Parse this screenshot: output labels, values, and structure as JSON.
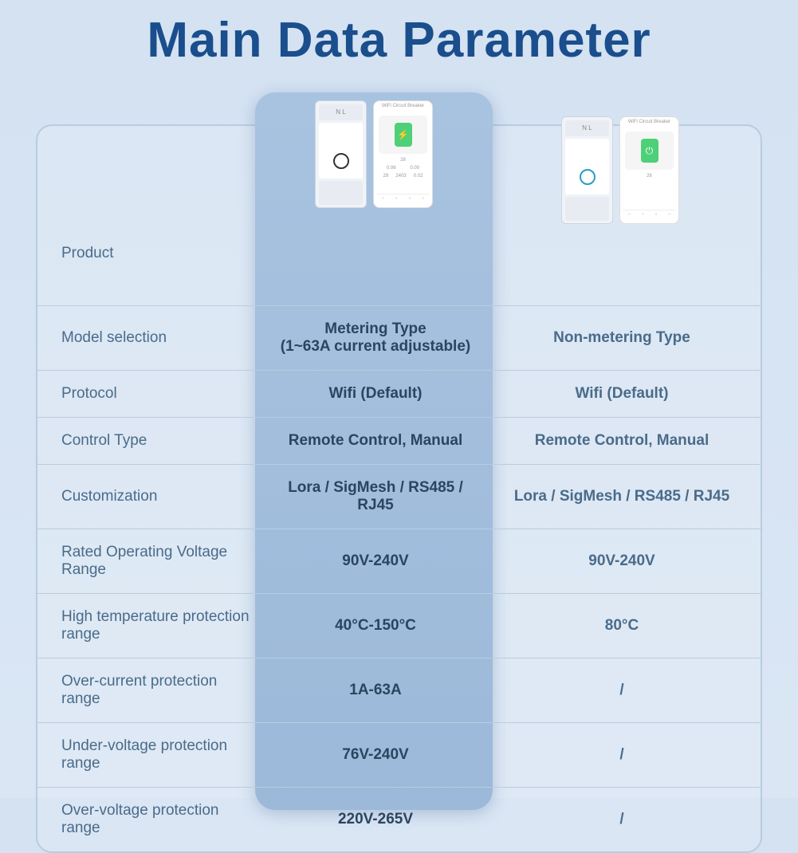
{
  "title": "Main Data Parameter",
  "colors": {
    "title_color": "#1a4e8c",
    "bg_gradient_from": "#d4e2f2",
    "bg_gradient_to": "#dae6f4",
    "highlight_bg": "#a8c3e0",
    "border_color": "#b8cce0",
    "label_color": "#4a6b8a",
    "value_color": "#2a4560"
  },
  "rows": [
    {
      "label": "Product",
      "v1": "",
      "v2": ""
    },
    {
      "label": "Model selection",
      "v1": "Metering Type\n(1~63A current adjustable)",
      "v2": "Non-metering Type"
    },
    {
      "label": "Protocol",
      "v1": "Wifi (Default)",
      "v2": "Wifi (Default)"
    },
    {
      "label": "Control Type",
      "v1": "Remote Control, Manual",
      "v2": "Remote Control, Manual"
    },
    {
      "label": "Customization",
      "v1": "Lora / SigMesh / RS485 / RJ45",
      "v2": "Lora / SigMesh / RS485 / RJ45"
    },
    {
      "label": "Rated Operating Voltage Range",
      "v1": "90V-240V",
      "v2": "90V-240V"
    },
    {
      "label": "High temperature protection range",
      "v1": "40°C-150°C",
      "v2": "80°C"
    },
    {
      "label": "Over-current protection range",
      "v1": "1A-63A",
      "v2": "/"
    },
    {
      "label": "Under-voltage protection range",
      "v1": "76V-240V",
      "v2": "/"
    },
    {
      "label": "Over-voltage protection range",
      "v1": "220V-265V",
      "v2": "/"
    }
  ],
  "phone_label": "WiFi Circuit Breaker",
  "device_terminals": "N    L"
}
